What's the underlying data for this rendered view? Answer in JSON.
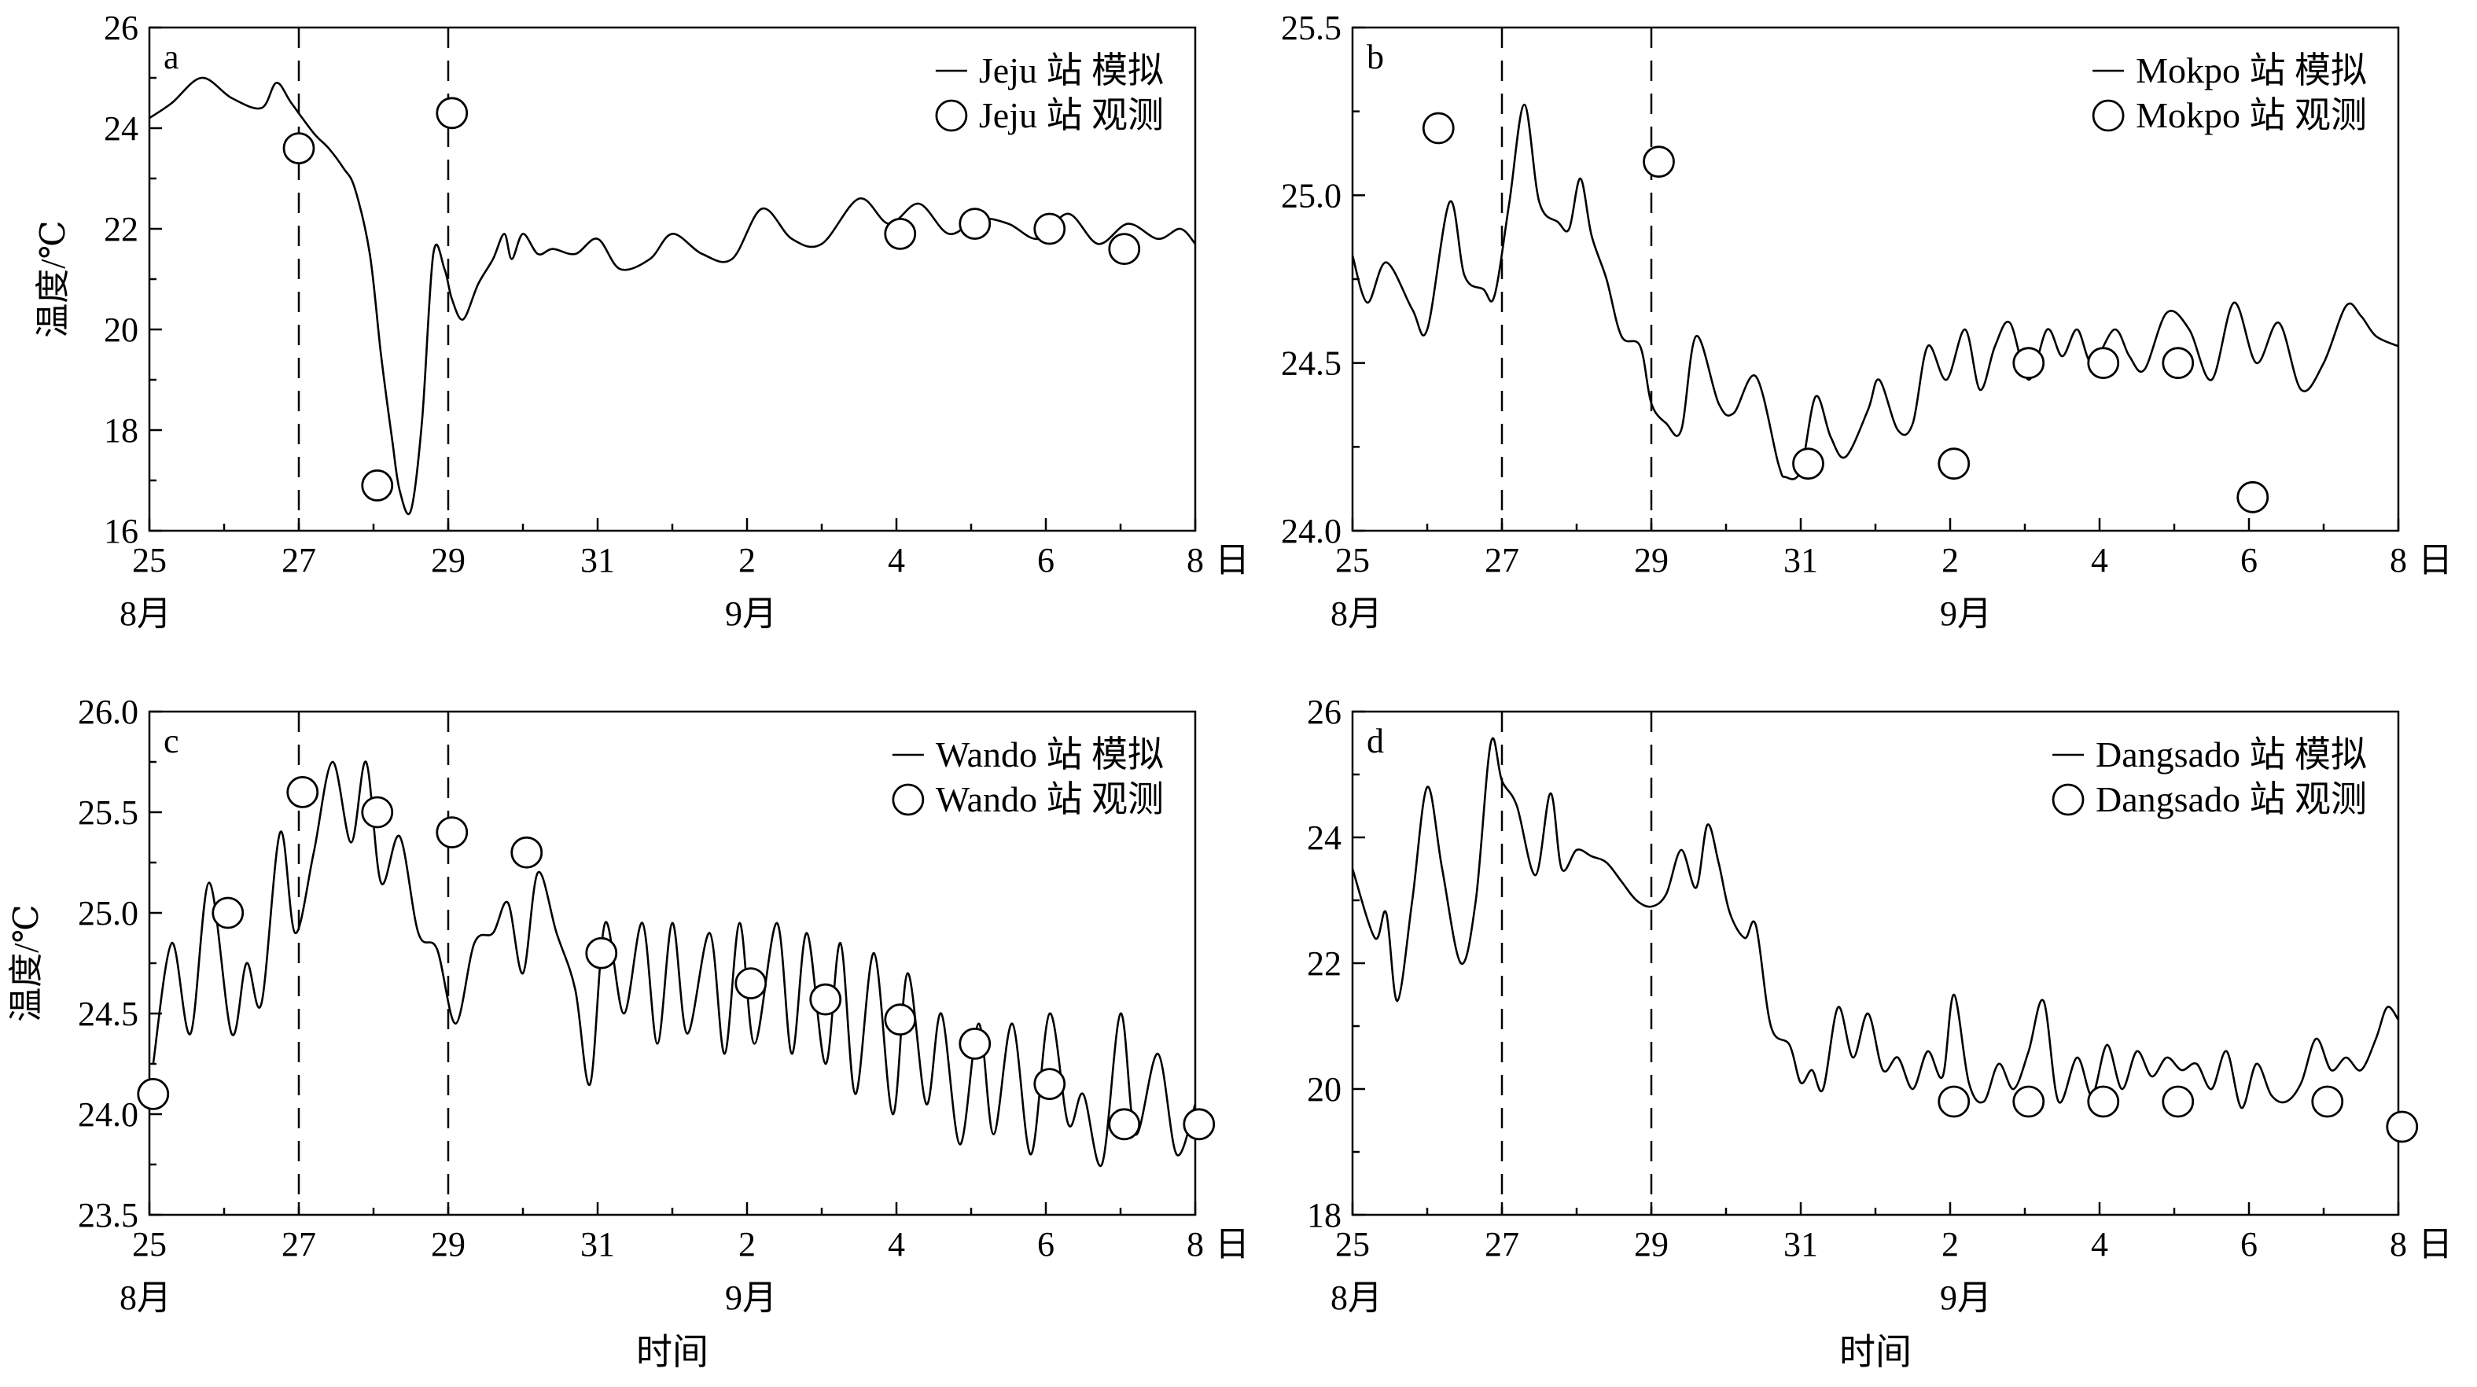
{
  "figure": {
    "day_suffix": "日",
    "month_left": "8月",
    "month_right": "9月",
    "x_title": "时间",
    "y_title": "温度/℃"
  },
  "chart_data": [
    {
      "id": "a",
      "type": "line",
      "panel_label": "a",
      "x_unit": "day index (0 = Aug 25 00:00, 14 = Sep 8)",
      "x_ticks": [
        0,
        2,
        4,
        6,
        8,
        10,
        12,
        14
      ],
      "x_tick_labels": [
        "25",
        "27",
        "29",
        "31",
        "2",
        "4",
        "6",
        "8"
      ],
      "xlim": [
        0,
        14
      ],
      "ylim": [
        16,
        26
      ],
      "y_ticks": [
        16,
        18,
        20,
        22,
        24,
        26
      ],
      "y_tick_labels": [
        "16",
        "18",
        "20",
        "22",
        "24",
        "26"
      ],
      "dashed_x": [
        2,
        4
      ],
      "legend_placement": "top-right",
      "series": [
        {
          "name": "Jeju 站 模拟",
          "style": "line",
          "x": [
            0,
            0.3,
            0.7,
            1.1,
            1.5,
            1.7,
            1.9,
            2.2,
            2.4,
            2.6,
            2.75,
            2.95,
            3.1,
            3.25,
            3.35,
            3.5,
            3.65,
            3.8,
            3.95,
            4.05,
            4.2,
            4.4,
            4.6,
            4.75,
            4.85,
            5.0,
            5.2,
            5.4,
            5.7,
            6.0,
            6.3,
            6.7,
            7.0,
            7.4,
            7.8,
            8.2,
            8.6,
            9.0,
            9.5,
            9.9,
            10.3,
            10.7,
            11.1,
            11.5,
            11.9,
            12.3,
            12.7,
            13.1,
            13.5,
            13.8,
            14.0
          ],
          "y": [
            24.2,
            24.5,
            25.0,
            24.6,
            24.4,
            24.9,
            24.5,
            23.9,
            23.6,
            23.2,
            22.8,
            21.5,
            19.5,
            17.8,
            16.8,
            16.4,
            18.2,
            21.5,
            21.2,
            20.6,
            20.2,
            20.9,
            21.4,
            21.9,
            21.4,
            21.9,
            21.5,
            21.6,
            21.5,
            21.8,
            21.2,
            21.4,
            21.9,
            21.5,
            21.4,
            22.4,
            21.8,
            21.7,
            22.6,
            22.1,
            22.5,
            21.9,
            22.2,
            22.1,
            21.8,
            22.3,
            21.7,
            22.1,
            21.8,
            22.0,
            21.7
          ]
        },
        {
          "name": "Jeju 站 观测",
          "style": "marker",
          "x": [
            2,
            3.05,
            4.05,
            10.05,
            11.05,
            12.05,
            13.05
          ],
          "y": [
            23.6,
            16.9,
            24.3,
            21.9,
            22.1,
            22.0,
            21.6
          ]
        }
      ]
    },
    {
      "id": "b",
      "type": "line",
      "panel_label": "b",
      "x_unit": "day index (0 = Aug 25 00:00, 14 = Sep 8)",
      "x_ticks": [
        0,
        2,
        4,
        6,
        8,
        10,
        12,
        14
      ],
      "x_tick_labels": [
        "25",
        "27",
        "29",
        "31",
        "2",
        "4",
        "6",
        "8"
      ],
      "xlim": [
        0,
        14
      ],
      "ylim": [
        24.0,
        25.5
      ],
      "y_ticks": [
        24.0,
        24.5,
        25.0,
        25.5
      ],
      "y_tick_labels": [
        "24.0",
        "24.5",
        "25.0",
        "25.5"
      ],
      "dashed_x": [
        2,
        4
      ],
      "legend_placement": "top-right",
      "series": [
        {
          "name": "Mokpo 站 模拟",
          "style": "line",
          "x": [
            0,
            0.2,
            0.45,
            0.8,
            1.0,
            1.3,
            1.5,
            1.75,
            1.9,
            2.1,
            2.3,
            2.5,
            2.75,
            2.9,
            3.05,
            3.2,
            3.4,
            3.6,
            3.85,
            4.0,
            4.2,
            4.4,
            4.6,
            4.9,
            5.1,
            5.4,
            5.7,
            5.8,
            6.0,
            6.2,
            6.4,
            6.6,
            6.9,
            7.05,
            7.3,
            7.5,
            7.7,
            7.95,
            8.2,
            8.4,
            8.6,
            8.8,
            9.05,
            9.3,
            9.5,
            9.7,
            9.9,
            10.2,
            10.4,
            10.6,
            10.9,
            11.2,
            11.5,
            11.8,
            12.1,
            12.4,
            12.7,
            13.0,
            13.3,
            13.5,
            13.7,
            14.0
          ],
          "y": [
            24.82,
            24.68,
            24.8,
            24.66,
            24.6,
            24.98,
            24.76,
            24.72,
            24.7,
            24.98,
            25.27,
            24.98,
            24.92,
            24.9,
            25.05,
            24.88,
            24.75,
            24.58,
            24.55,
            24.38,
            24.32,
            24.3,
            24.58,
            24.38,
            24.35,
            24.46,
            24.2,
            24.16,
            24.18,
            24.4,
            24.28,
            24.22,
            24.36,
            24.45,
            24.3,
            24.32,
            24.55,
            24.45,
            24.6,
            24.42,
            24.55,
            24.62,
            24.45,
            24.6,
            24.52,
            24.6,
            24.5,
            24.6,
            24.52,
            24.48,
            24.65,
            24.6,
            24.45,
            24.68,
            24.5,
            24.62,
            24.42,
            24.5,
            24.67,
            24.64,
            24.58,
            24.55
          ]
        },
        {
          "name": "Mokpo 站 观测",
          "style": "marker",
          "x": [
            1.15,
            4.1,
            6.1,
            8.05,
            9.05,
            10.05,
            11.05,
            12.05
          ],
          "y": [
            25.2,
            25.1,
            24.2,
            24.2,
            24.5,
            24.5,
            24.5,
            24.1
          ]
        }
      ]
    },
    {
      "id": "c",
      "type": "line",
      "panel_label": "c",
      "x_unit": "day index (0 = Aug 25 00:00, 14 = Sep 8)",
      "x_ticks": [
        0,
        2,
        4,
        6,
        8,
        10,
        12,
        14
      ],
      "x_tick_labels": [
        "25",
        "27",
        "29",
        "31",
        "2",
        "4",
        "6",
        "8"
      ],
      "xlim": [
        0,
        14
      ],
      "ylim": [
        23.5,
        26.0
      ],
      "y_ticks": [
        23.5,
        24.0,
        24.5,
        25.0,
        25.5,
        26.0
      ],
      "y_tick_labels": [
        "23.5",
        "24.0",
        "24.5",
        "25.0",
        "25.5",
        "26.0"
      ],
      "dashed_x": [
        2,
        4
      ],
      "legend_placement": "top-right",
      "series": [
        {
          "name": "Wando 站 模拟",
          "style": "line",
          "x": [
            0.05,
            0.3,
            0.55,
            0.8,
            1.1,
            1.3,
            1.5,
            1.75,
            1.95,
            2.2,
            2.45,
            2.7,
            2.9,
            3.1,
            3.35,
            3.6,
            3.85,
            4.1,
            4.35,
            4.6,
            4.8,
            5.0,
            5.2,
            5.45,
            5.7,
            5.9,
            6.1,
            6.35,
            6.6,
            6.8,
            7.0,
            7.2,
            7.5,
            7.7,
            7.9,
            8.1,
            8.4,
            8.6,
            8.8,
            9.05,
            9.25,
            9.45,
            9.7,
            9.95,
            10.15,
            10.4,
            10.6,
            10.85,
            11.1,
            11.3,
            11.55,
            11.8,
            12.05,
            12.3,
            12.5,
            12.75,
            13.0,
            13.2,
            13.5,
            13.75,
            14.0
          ],
          "y": [
            24.25,
            24.85,
            24.4,
            25.15,
            24.4,
            24.75,
            24.55,
            25.4,
            24.9,
            25.3,
            25.75,
            25.35,
            25.75,
            25.15,
            25.38,
            24.9,
            24.82,
            24.45,
            24.85,
            24.9,
            25.05,
            24.7,
            25.2,
            24.9,
            24.62,
            24.15,
            24.95,
            24.5,
            24.95,
            24.35,
            24.95,
            24.4,
            24.9,
            24.3,
            24.95,
            24.35,
            24.95,
            24.3,
            24.9,
            24.25,
            24.85,
            24.1,
            24.8,
            24.0,
            24.7,
            24.05,
            24.5,
            23.85,
            24.45,
            23.9,
            24.45,
            23.8,
            24.5,
            23.95,
            24.1,
            23.75,
            24.5,
            23.9,
            24.3,
            23.8,
            24.05
          ]
        },
        {
          "name": "Wando 站 观测",
          "style": "marker",
          "x": [
            0.05,
            1.05,
            2.05,
            3.05,
            4.05,
            5.05,
            6.05,
            8.05,
            9.05,
            10.05,
            11.05,
            12.05,
            13.05,
            14.05
          ],
          "y": [
            24.1,
            25.0,
            25.6,
            25.5,
            25.4,
            25.3,
            24.8,
            24.65,
            24.57,
            24.47,
            24.35,
            24.15,
            23.95,
            23.95
          ]
        }
      ]
    },
    {
      "id": "d",
      "type": "line",
      "panel_label": "d",
      "x_unit": "day index (0 = Aug 25 00:00, 14 = Sep 8)",
      "x_ticks": [
        0,
        2,
        4,
        6,
        8,
        10,
        12,
        14
      ],
      "x_tick_labels": [
        "25",
        "27",
        "29",
        "31",
        "2",
        "4",
        "6",
        "8"
      ],
      "xlim": [
        0,
        14
      ],
      "ylim": [
        18,
        26
      ],
      "y_ticks": [
        18,
        20,
        22,
        24,
        26
      ],
      "y_tick_labels": [
        "18",
        "20",
        "22",
        "24",
        "26"
      ],
      "dashed_x": [
        2,
        4
      ],
      "legend_placement": "top-right",
      "series": [
        {
          "name": "Dangsado 站 模拟",
          "style": "line",
          "x": [
            0,
            0.3,
            0.45,
            0.6,
            0.8,
            1.0,
            1.2,
            1.45,
            1.65,
            1.85,
            2.0,
            2.2,
            2.45,
            2.65,
            2.8,
            3.0,
            3.2,
            3.4,
            3.6,
            3.8,
            4.0,
            4.2,
            4.4,
            4.6,
            4.75,
            4.9,
            5.05,
            5.25,
            5.4,
            5.6,
            5.85,
            6.0,
            6.15,
            6.3,
            6.5,
            6.7,
            6.9,
            7.1,
            7.3,
            7.5,
            7.7,
            7.9,
            8.05,
            8.25,
            8.45,
            8.65,
            8.85,
            9.05,
            9.25,
            9.45,
            9.7,
            9.9,
            10.1,
            10.3,
            10.5,
            10.7,
            10.9,
            11.1,
            11.3,
            11.5,
            11.7,
            11.9,
            12.1,
            12.3,
            12.5,
            12.7,
            12.9,
            13.1,
            13.3,
            13.5,
            13.7,
            13.85,
            14.0
          ],
          "y": [
            23.5,
            22.4,
            22.8,
            21.4,
            23.0,
            24.8,
            23.5,
            22.0,
            23.0,
            25.5,
            24.9,
            24.5,
            23.4,
            24.7,
            23.5,
            23.8,
            23.7,
            23.6,
            23.3,
            23.0,
            22.9,
            23.1,
            23.8,
            23.2,
            24.2,
            23.6,
            22.8,
            22.4,
            22.6,
            21.0,
            20.7,
            20.1,
            20.3,
            20.0,
            21.3,
            20.5,
            21.2,
            20.3,
            20.5,
            20.0,
            20.6,
            20.2,
            21.5,
            20.1,
            19.8,
            20.4,
            20.0,
            20.6,
            21.4,
            19.8,
            20.5,
            19.9,
            20.7,
            20.0,
            20.6,
            20.2,
            20.5,
            20.3,
            20.4,
            20.0,
            20.6,
            19.7,
            20.4,
            19.9,
            19.8,
            20.1,
            20.8,
            20.3,
            20.5,
            20.3,
            20.8,
            21.3,
            21.1
          ]
        },
        {
          "name": "Dangsado 站 观测",
          "style": "marker",
          "x": [
            8.05,
            9.05,
            10.05,
            11.05,
            13.05,
            14.05
          ],
          "y": [
            19.8,
            19.8,
            19.8,
            19.8,
            19.8,
            19.4
          ]
        }
      ]
    }
  ]
}
